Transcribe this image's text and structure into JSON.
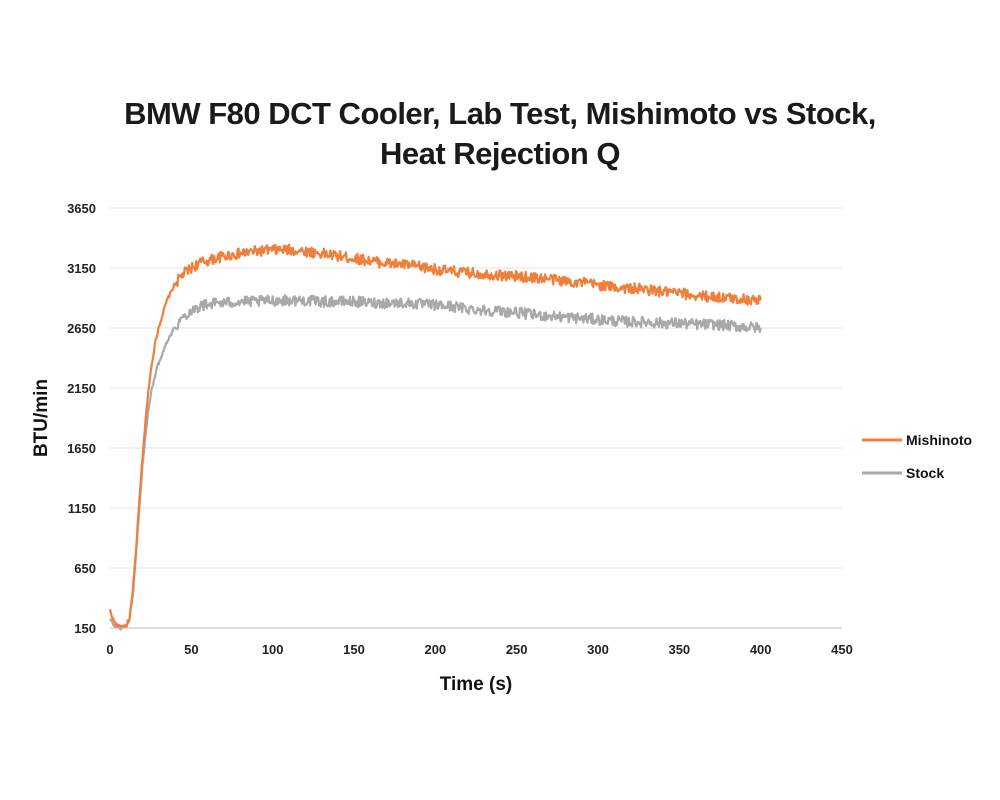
{
  "chart_data": {
    "type": "line",
    "title_lines": [
      "BMW F80 DCT Cooler, Lab Test, Mishimoto vs Stock,",
      "Heat Rejection Q"
    ],
    "xlabel": "Time (s)",
    "ylabel": "BTU/min",
    "xlim": [
      0,
      450
    ],
    "ylim": [
      150,
      3650
    ],
    "xticks": [
      0,
      50,
      100,
      150,
      200,
      250,
      300,
      350,
      400,
      450
    ],
    "yticks": [
      150,
      650,
      1150,
      1650,
      2150,
      2650,
      3150,
      3650
    ],
    "grid": "horizontal",
    "legend": "right",
    "series": [
      {
        "name": "Mishinoto",
        "color": "#f07f3c",
        "x": [
          0,
          2,
          4,
          6,
          8,
          10,
          12,
          14,
          16,
          18,
          20,
          22,
          24,
          26,
          28,
          30,
          35,
          40,
          45,
          50,
          55,
          60,
          65,
          70,
          80,
          90,
          100,
          110,
          120,
          130,
          140,
          150,
          160,
          170,
          180,
          190,
          200,
          210,
          220,
          230,
          240,
          250,
          260,
          270,
          280,
          290,
          300,
          310,
          320,
          330,
          340,
          350,
          360,
          370,
          380,
          390,
          400
        ],
        "values": [
          300,
          220,
          170,
          160,
          165,
          170,
          230,
          450,
          800,
          1200,
          1580,
          1900,
          2180,
          2380,
          2540,
          2660,
          2880,
          3020,
          3100,
          3150,
          3190,
          3210,
          3230,
          3250,
          3270,
          3290,
          3300,
          3300,
          3290,
          3270,
          3250,
          3230,
          3210,
          3190,
          3180,
          3160,
          3140,
          3120,
          3110,
          3100,
          3090,
          3080,
          3070,
          3060,
          3040,
          3030,
          3010,
          2990,
          2980,
          2970,
          2950,
          2940,
          2920,
          2910,
          2900,
          2890,
          2880
        ]
      },
      {
        "name": "Stock",
        "color": "#a7aaa9",
        "x": [
          0,
          2,
          4,
          6,
          8,
          10,
          12,
          14,
          16,
          18,
          20,
          22,
          24,
          26,
          28,
          30,
          35,
          40,
          45,
          50,
          55,
          60,
          65,
          70,
          80,
          90,
          100,
          110,
          120,
          130,
          140,
          150,
          160,
          170,
          180,
          190,
          200,
          210,
          220,
          230,
          240,
          250,
          260,
          270,
          280,
          290,
          300,
          310,
          320,
          330,
          340,
          350,
          360,
          370,
          380,
          390,
          400
        ],
        "values": [
          220,
          180,
          160,
          150,
          155,
          165,
          220,
          420,
          760,
          1150,
          1500,
          1780,
          2000,
          2160,
          2280,
          2360,
          2540,
          2660,
          2740,
          2800,
          2830,
          2850,
          2860,
          2860,
          2870,
          2870,
          2880,
          2880,
          2880,
          2870,
          2870,
          2870,
          2860,
          2860,
          2860,
          2850,
          2840,
          2830,
          2810,
          2800,
          2790,
          2780,
          2760,
          2750,
          2740,
          2730,
          2720,
          2710,
          2700,
          2700,
          2690,
          2690,
          2680,
          2680,
          2670,
          2660,
          2650
        ]
      }
    ]
  }
}
